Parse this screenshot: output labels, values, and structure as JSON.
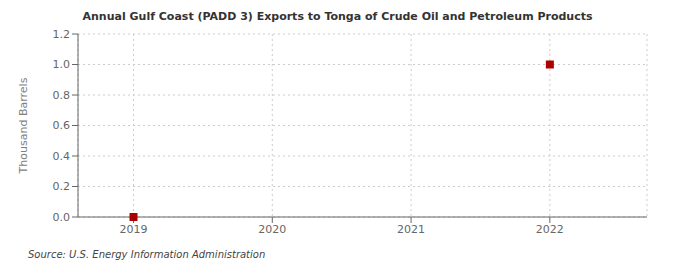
{
  "chart_data": {
    "type": "scatter",
    "title": "Annual Gulf Coast (PADD 3) Exports to Tonga of Crude Oil and Petroleum Products",
    "ylabel": "Thousand Barrels",
    "annotations": [
      "Source: U.S. Energy Information Administration"
    ],
    "x": [
      2019,
      2022
    ],
    "values": [
      0.0,
      1.0
    ],
    "color": "#aa0000",
    "marker": "square",
    "xlim": [
      2018.6,
      2022.7
    ],
    "ylim": [
      0.0,
      1.2
    ],
    "xticks": [
      2019,
      2020,
      2021,
      2022
    ],
    "yticks": [
      {
        "value": 0.0,
        "label": "0.0"
      },
      0.2,
      0.4,
      0.6,
      0.8,
      {
        "value": 1.0,
        "label": "1.0"
      },
      1.2
    ],
    "grid": true
  }
}
